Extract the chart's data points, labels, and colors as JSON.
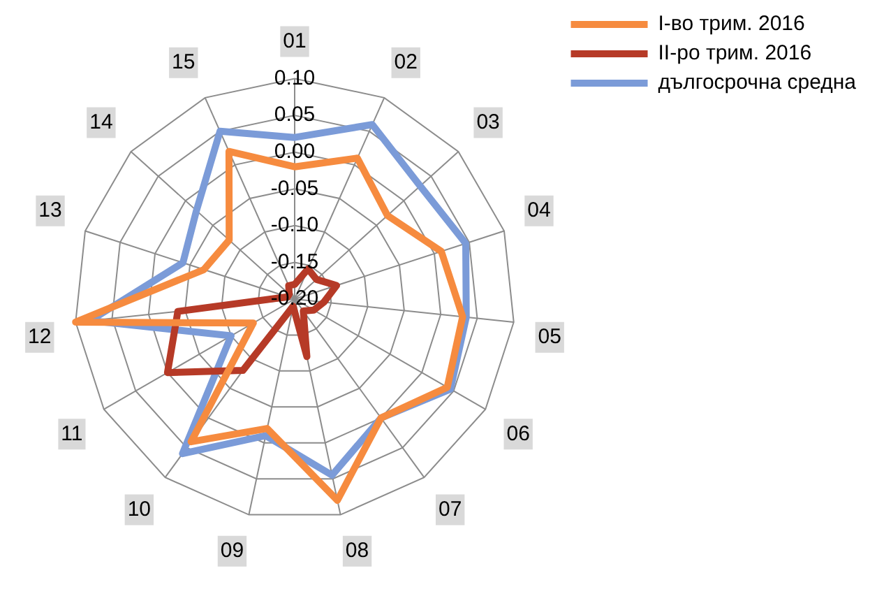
{
  "chart_data": {
    "type": "radar",
    "categories": [
      "01",
      "02",
      "03",
      "04",
      "05",
      "06",
      "07",
      "08",
      "09",
      "10",
      "11",
      "12",
      "13",
      "14",
      "15"
    ],
    "series": [
      {
        "name": "I-во трим. 2016",
        "color": "#f68b3f",
        "values": [
          -0.02,
          0.01,
          -0.03,
          0.01,
          0.03,
          0.04,
          0.0,
          0.08,
          -0.02,
          0.04,
          -0.135,
          0.1,
          -0.07,
          -0.08,
          0.02
        ]
      },
      {
        "name": "II-ро трим. 2016",
        "color": "#b63a27",
        "values": [
          -0.18,
          -0.155,
          -0.16,
          -0.14,
          -0.16,
          -0.17,
          -0.18,
          -0.12,
          -0.19,
          -0.08,
          0.0,
          -0.04,
          -0.19,
          -0.19,
          -0.18
        ]
      },
      {
        "name": "дългосрочна средна",
        "color": "#7b9bd8",
        "values": [
          0.02,
          0.06,
          0.03,
          0.045,
          0.035,
          0.045,
          0.0,
          0.045,
          -0.01,
          0.06,
          -0.1,
          0.08,
          -0.04,
          -0.02,
          0.05
        ]
      }
    ],
    "ylim": [
      -0.2,
      0.1
    ],
    "yticks": [
      {
        "value": -0.2,
        "label": "-0.20"
      },
      {
        "value": -0.15,
        "label": "-0.15"
      },
      {
        "value": -0.1,
        "label": "-0.10"
      },
      {
        "value": -0.05,
        "label": "-0.05"
      },
      {
        "value": 0,
        "label": "0.00"
      },
      {
        "value": 0.05,
        "label": "0.05"
      },
      {
        "value": 0.1,
        "label": "0.10"
      }
    ],
    "grid": true,
    "legend": "top right",
    "marker": "none",
    "line_style": "solid"
  }
}
